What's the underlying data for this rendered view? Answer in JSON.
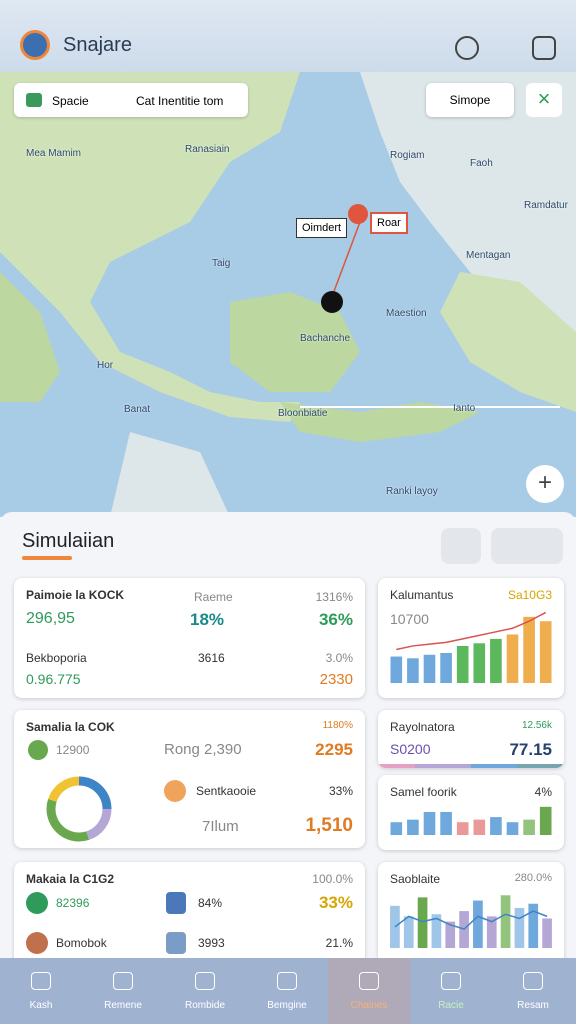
{
  "header": {
    "title": "Snajare"
  },
  "map": {
    "search_left": "Spacie",
    "search_text": "Cat Inentitie tom",
    "search_right": "Simope",
    "callout_left": "Oimdert",
    "callout_right": "Roar",
    "labels": [
      "Mea Mamim",
      "Ranasiain",
      "Rogiam",
      "Faoh",
      "Ramdatur",
      "Mentagan",
      "Taig",
      "Maestion",
      "Bachanche",
      "Hor",
      "Banat",
      "Bloonbiatie",
      "Ianto",
      "Ranki layoy"
    ]
  },
  "panel": {
    "title": "Simulaiian",
    "card1": {
      "title": "Paimoie la KOCK",
      "sub": "Raeme",
      "pct": "1316%",
      "v1": "296,95",
      "v2": "18%",
      "v3": "36%",
      "label2": "Bekboporia",
      "v4": "3616",
      "v5": "3.0%",
      "v6": "0.96.775",
      "v7": "2330"
    },
    "card2": {
      "title": "Kalumantus",
      "tag": "Sa10G3",
      "value": "10700",
      "chart": {
        "type": "bar",
        "values": [
          30,
          28,
          32,
          34,
          42,
          45,
          50,
          55,
          75,
          70
        ],
        "colors": [
          "#6fa8dc",
          "#6fa8dc",
          "#6fa8dc",
          "#6fa8dc",
          "#5cb85c",
          "#5cb85c",
          "#5cb85c",
          "#f0ad4e",
          "#f0ad4e",
          "#f0ad4e"
        ],
        "line": [
          38,
          42,
          44,
          46,
          50,
          54,
          58,
          62,
          70,
          80
        ],
        "line_color": "#d9534f",
        "ylim": [
          0,
          85
        ]
      }
    },
    "card3": {
      "title": "Samalia la COK",
      "pct": "1180%",
      "v1": "12900",
      "v2": "Rong 2,390",
      "v3": "2295",
      "label2": "Sentkaooie",
      "v4": "33%",
      "v5": "7Ilum",
      "v6": "1,510",
      "chart": {
        "type": "pie",
        "values": [
          25,
          20,
          35,
          20
        ],
        "colors": [
          "#3d85c6",
          "#b4a7d6",
          "#6aa84f",
          "#f1c232"
        ]
      }
    },
    "card4": {
      "title": "Rayolnatora",
      "tag": "12.56k",
      "v1": "S0200",
      "v2": "77.15"
    },
    "card5": {
      "title": "Samel foorik",
      "tag": "4%",
      "chart": {
        "type": "bar",
        "values": [
          10,
          12,
          18,
          18,
          10,
          12,
          14,
          10,
          12,
          22
        ],
        "colors": [
          "#6fa8dc",
          "#6fa8dc",
          "#6fa8dc",
          "#6fa8dc",
          "#ea9999",
          "#ea9999",
          "#6fa8dc",
          "#6fa8dc",
          "#93c47d",
          "#6aa84f"
        ],
        "ylim": [
          0,
          25
        ]
      }
    },
    "card6": {
      "title": "Makaia la C1G2",
      "pct": "100.0%",
      "v1": "82396",
      "v2": "84%",
      "v3": "33%",
      "label2": "Bomobok",
      "v4": "3993",
      "v5": "21.%"
    },
    "card7": {
      "title": "Saoblaite",
      "tag": "280.0%",
      "chart": {
        "type": "bar",
        "values": [
          40,
          30,
          48,
          32,
          25,
          35,
          45,
          30,
          50,
          38,
          42,
          28
        ],
        "colors": [
          "#9fc5e8",
          "#9fc5e8",
          "#6aa84f",
          "#9fc5e8",
          "#b4a7d6",
          "#b4a7d6",
          "#6fa8dc",
          "#b4a7d6",
          "#93c47d",
          "#9fc5e8",
          "#6fa8dc",
          "#b4a7d6"
        ],
        "line": [
          20,
          30,
          25,
          28,
          22,
          18,
          30,
          25,
          32,
          28,
          35,
          30
        ],
        "line_color": "#3d85c6",
        "ylim": [
          0,
          55
        ]
      }
    }
  },
  "nav": [
    "Kash",
    "Remene",
    "Rombide",
    "Bemgine",
    "Chaines",
    "Racie",
    "Resam"
  ]
}
